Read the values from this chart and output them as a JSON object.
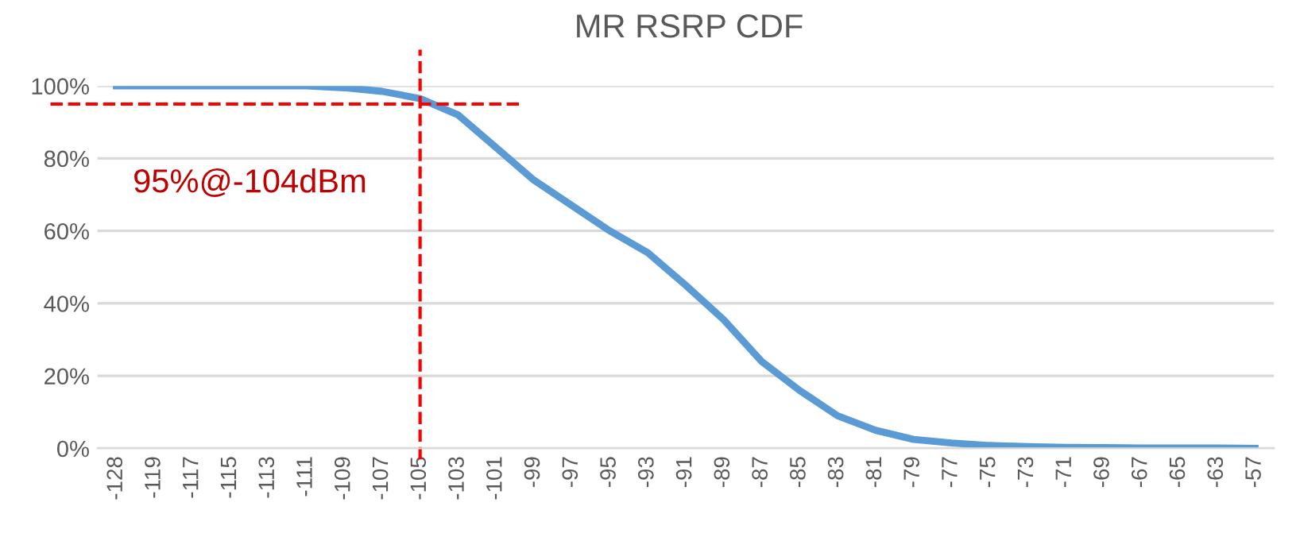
{
  "chart_data": {
    "type": "line",
    "title": "MR RSRP CDF",
    "categories": [
      "-128",
      "-119",
      "-117",
      "-115",
      "-113",
      "-111",
      "-109",
      "-107",
      "-105",
      "-103",
      "-101",
      "-99",
      "-97",
      "-95",
      "-93",
      "-91",
      "-89",
      "-87",
      "-85",
      "-83",
      "-81",
      "-79",
      "-77",
      "-75",
      "-73",
      "-71",
      "-69",
      "-67",
      "-65",
      "-63",
      "-57"
    ],
    "series": [
      {
        "color": "#5b9bd5",
        "values": [
          100,
          100,
          100,
          100,
          100,
          100,
          99.5,
          98.5,
          96.5,
          92,
          83,
          74,
          67,
          60,
          54,
          45,
          35.5,
          24,
          16,
          9,
          5,
          2.5,
          1.5,
          0.8,
          0.5,
          0.3,
          0.2,
          0.1,
          0.1,
          0.1,
          0
        ]
      }
    ],
    "ylim": [
      0,
      100
    ],
    "yticks": [
      {
        "value": 0,
        "label": "0%"
      },
      {
        "value": 20,
        "label": "20%"
      },
      {
        "value": 40,
        "label": "40%"
      },
      {
        "value": 60,
        "label": "60%"
      },
      {
        "value": 80,
        "label": "80%"
      },
      {
        "value": 100,
        "label": "100%"
      }
    ],
    "ref_lines": [
      {
        "axis": "y",
        "value": 95,
        "color": "#ff0000",
        "line_style": "dashed"
      },
      {
        "axis": "x",
        "value": "-105",
        "color": "#ff0000",
        "line_style": "dashed"
      }
    ],
    "annotations": [
      "95%@-104dBm"
    ],
    "grid": "y",
    "line_style": "solid",
    "marker": "none"
  }
}
